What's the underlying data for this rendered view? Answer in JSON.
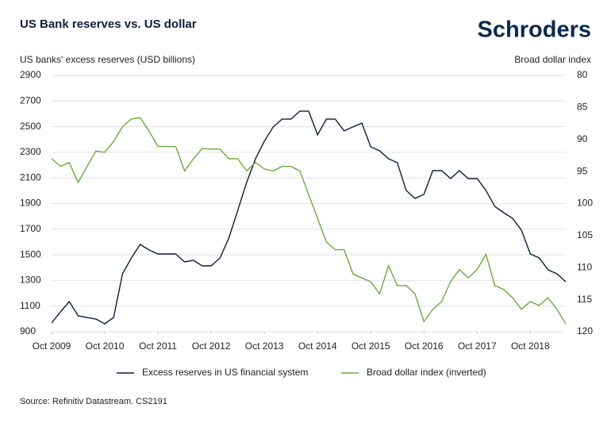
{
  "chart_data": {
    "type": "line",
    "title": "US Bank reserves vs. US dollar",
    "brand": "Schroders",
    "y_label": "US banks' excess reserves (USD billions)",
    "y2_label": "Broad dollar index",
    "source": "Source: Refinitiv Datastream. CS2191",
    "x": [
      "2009-10",
      "2009-12",
      "2010-02",
      "2010-04",
      "2010-06",
      "2010-08",
      "2010-10",
      "2010-12",
      "2011-02",
      "2011-04",
      "2011-06",
      "2011-08",
      "2011-10",
      "2011-12",
      "2012-02",
      "2012-04",
      "2012-06",
      "2012-08",
      "2012-10",
      "2012-12",
      "2013-02",
      "2013-04",
      "2013-06",
      "2013-08",
      "2013-10",
      "2013-12",
      "2014-02",
      "2014-04",
      "2014-06",
      "2014-08",
      "2014-10",
      "2014-12",
      "2015-02",
      "2015-04",
      "2015-06",
      "2015-08",
      "2015-10",
      "2015-12",
      "2016-02",
      "2016-04",
      "2016-06",
      "2016-08",
      "2016-10",
      "2016-12",
      "2017-02",
      "2017-04",
      "2017-06",
      "2017-08",
      "2017-10",
      "2017-12",
      "2018-02",
      "2018-04",
      "2018-06",
      "2018-08",
      "2018-10",
      "2018-12",
      "2019-02",
      "2019-04",
      "2019-06"
    ],
    "xlim": [
      "2009-10",
      "2019-06"
    ],
    "xticks": [
      {
        "value": "2009-10",
        "label": "Oct 2009"
      },
      {
        "value": "2010-10",
        "label": "Oct 2010"
      },
      {
        "value": "2011-10",
        "label": "Oct 2011"
      },
      {
        "value": "2012-10",
        "label": "Oct 2012"
      },
      {
        "value": "2013-10",
        "label": "Oct 2013"
      },
      {
        "value": "2014-10",
        "label": "Oct 2014"
      },
      {
        "value": "2015-10",
        "label": "Oct 2015"
      },
      {
        "value": "2016-10",
        "label": "Oct 2016"
      },
      {
        "value": "2017-10",
        "label": "Oct 2017"
      },
      {
        "value": "2018-10",
        "label": "Oct 2018"
      }
    ],
    "ylim": [
      900,
      2900
    ],
    "yticks": [
      900,
      1100,
      1300,
      1500,
      1700,
      1900,
      2100,
      2300,
      2500,
      2700,
      2900
    ],
    "y2lim": [
      120,
      80
    ],
    "y2ticks": [
      120,
      115,
      110,
      105,
      100,
      95,
      90,
      85,
      80
    ],
    "y2_inverted": true,
    "grid": true,
    "legend": "bottom",
    "series": [
      {
        "name": "Excess reserves in US financial system",
        "color": "#0d1e3d",
        "values": [
          968,
          1055,
          1135,
          1024,
          1011,
          999,
          962,
          1011,
          1352,
          1476,
          1581,
          1538,
          1507,
          1507,
          1507,
          1445,
          1457,
          1414,
          1414,
          1476,
          1631,
          1847,
          2064,
          2250,
          2386,
          2498,
          2559,
          2559,
          2621,
          2621,
          2436,
          2559,
          2559,
          2467,
          2498,
          2528,
          2343,
          2312,
          2250,
          2219,
          2002,
          1940,
          1971,
          2157,
          2157,
          2095,
          2157,
          2095,
          2095,
          2002,
          1878,
          1829,
          1785,
          1693,
          1507,
          1476,
          1383,
          1352,
          1290
        ]
      },
      {
        "name": "Broad dollar index (inverted)",
        "color": "#6aab3c",
        "axis": "y2",
        "values": [
          93.0,
          94.2,
          93.6,
          96.7,
          94.2,
          91.8,
          92.0,
          90.3,
          88.0,
          86.8,
          86.6,
          88.7,
          91.1,
          91.1,
          91.1,
          94.9,
          93.0,
          91.4,
          91.5,
          91.5,
          93.0,
          93.0,
          94.9,
          93.6,
          94.6,
          94.9,
          94.2,
          94.2,
          94.9,
          98.6,
          102.3,
          106.0,
          107.2,
          107.2,
          111.0,
          111.6,
          112.2,
          114.1,
          109.7,
          112.8,
          112.8,
          114.1,
          118.4,
          116.5,
          115.3,
          112.2,
          110.3,
          111.6,
          110.3,
          107.9,
          112.8,
          113.4,
          114.7,
          116.5,
          115.3,
          115.9,
          114.7,
          116.5,
          118.8
        ]
      }
    ]
  }
}
